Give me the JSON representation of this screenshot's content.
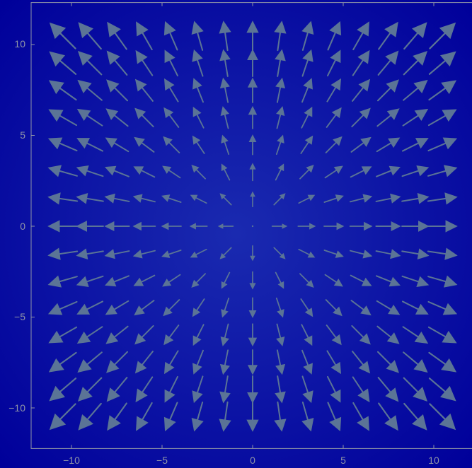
{
  "chart_data": {
    "type": "vector_field",
    "title": "",
    "xlabel": "",
    "ylabel": "",
    "xlim": [
      -12,
      12
    ],
    "ylim": [
      -12,
      12
    ],
    "x_ticks": [
      -10,
      -5,
      0,
      5,
      10
    ],
    "y_ticks": [
      -10,
      -5,
      0,
      5,
      10
    ],
    "x_tick_labels": [
      "−10",
      "−5",
      "0",
      "5",
      "10"
    ],
    "y_tick_labels": [
      "10",
      "5",
      "0",
      "−5",
      "−10"
    ],
    "grid": false,
    "field": "radial (x, y)",
    "sample_x": [
      -10.5,
      -9,
      -7.5,
      -6,
      -4.5,
      -3,
      -1.5,
      0,
      1.5,
      3,
      4.5,
      6,
      7.5,
      9,
      10.5
    ],
    "sample_y": [
      -10.5,
      -9,
      -7.5,
      -6,
      -4.5,
      -3,
      -1.5,
      0,
      1.5,
      3,
      4.5,
      6,
      7.5,
      9,
      10.5
    ],
    "colors": {
      "background_center": "#1a2ab0",
      "background_edge": "#00009a",
      "arrow": "#5b7496",
      "frame": "#8f95a6"
    }
  }
}
